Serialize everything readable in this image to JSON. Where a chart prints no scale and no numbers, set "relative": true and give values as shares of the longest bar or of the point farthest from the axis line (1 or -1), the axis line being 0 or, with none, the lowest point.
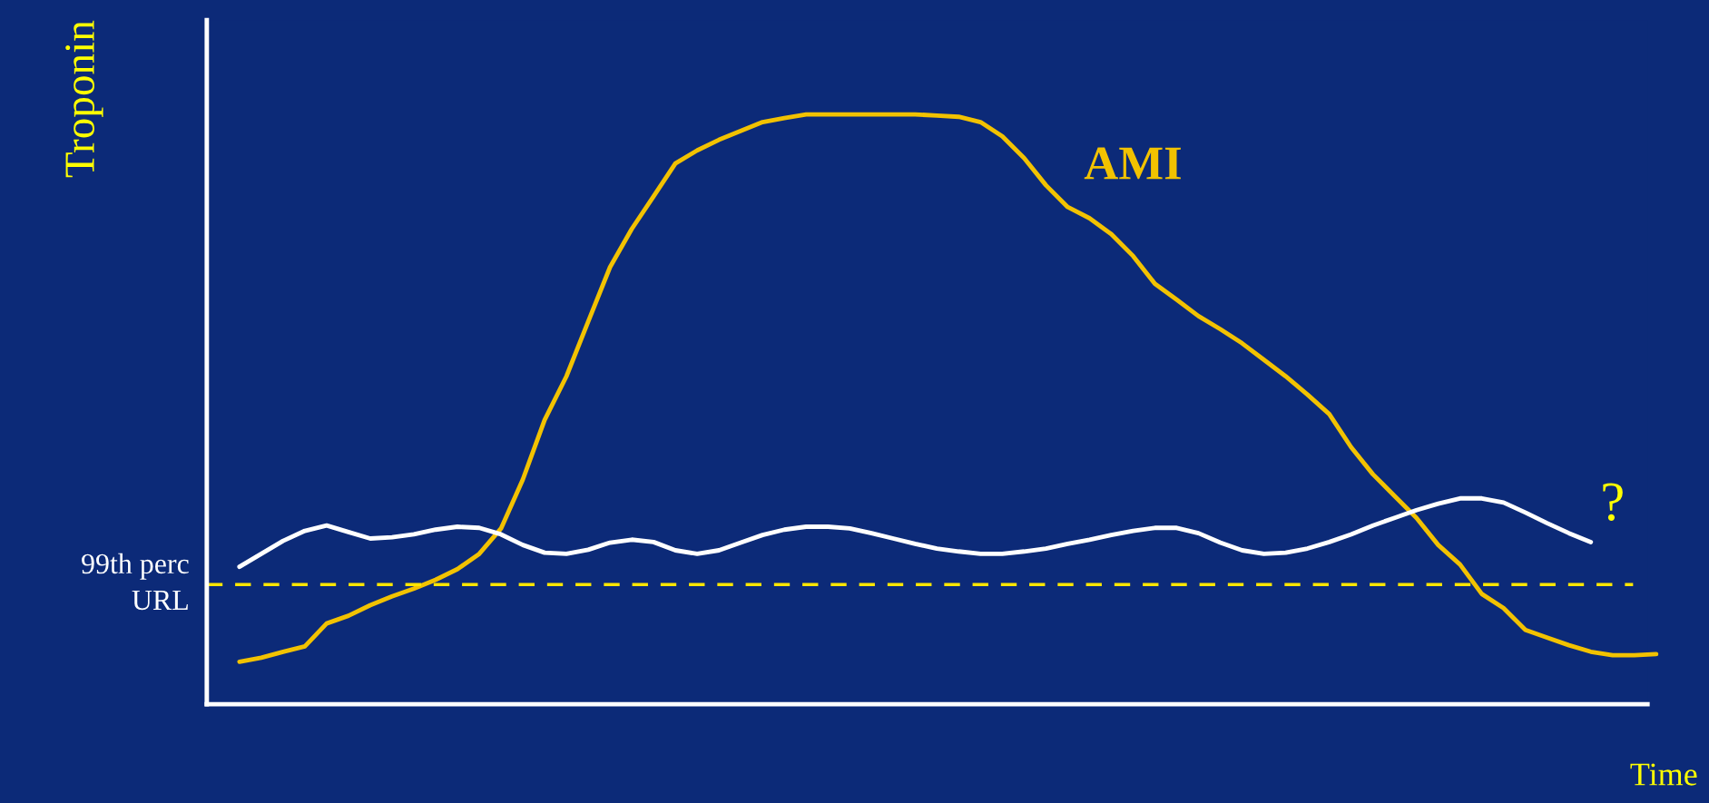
{
  "chart_data": {
    "type": "line",
    "relative": true,
    "ylabel": "Troponin",
    "xlabel": "Time",
    "marker": "none",
    "categories": [
      null,
      null,
      null,
      null,
      null,
      null,
      null,
      null,
      null,
      null,
      null,
      null,
      null,
      null,
      null,
      null,
      null,
      null,
      null,
      null,
      null,
      null,
      null,
      null,
      null,
      null,
      null,
      null,
      null,
      null,
      null,
      null,
      null,
      null,
      null,
      null,
      null,
      null,
      null,
      null,
      null,
      null,
      null,
      null,
      null,
      null,
      null,
      null,
      null,
      null,
      null,
      null,
      null,
      null,
      null,
      null,
      null,
      null,
      null,
      null,
      null,
      null,
      null,
      null,
      null,
      null
    ],
    "series": [
      {
        "name": "AMI",
        "color": "#f2c200",
        "line_style": "solid",
        "values": [
          0.072,
          0.079,
          0.089,
          0.098,
          0.137,
          0.15,
          0.168,
          0.183,
          0.196,
          0.211,
          0.229,
          0.255,
          0.298,
          0.381,
          0.482,
          0.556,
          0.649,
          0.741,
          0.806,
          0.861,
          0.917,
          0.939,
          0.957,
          0.972,
          0.987,
          0.994,
          1,
          1,
          1,
          1,
          1,
          1,
          0.998,
          0.996,
          0.987,
          0.963,
          0.926,
          0.88,
          0.843,
          0.824,
          0.797,
          0.76,
          0.713,
          0.686,
          0.658,
          0.636,
          0.612,
          0.584,
          0.556,
          0.525,
          0.492,
          0.436,
          0.39,
          0.353,
          0.316,
          0.27,
          0.237,
          0.187,
          0.163,
          0.126,
          0.113,
          0.1,
          0.089,
          0.083,
          0.083,
          0.085
        ]
      },
      {
        "color": "#ffffff",
        "line_style": "solid",
        "values": [
          0.233,
          0.255,
          0.277,
          0.294,
          0.303,
          0.292,
          0.281,
          0.283,
          0.288,
          0.296,
          0.301,
          0.299,
          0.288,
          0.27,
          0.257,
          0.255,
          0.262,
          0.274,
          0.279,
          0.275,
          0.261,
          0.255,
          0.261,
          0.274,
          0.287,
          0.296,
          0.301,
          0.301,
          0.298,
          0.29,
          0.281,
          0.272,
          0.264,
          0.259,
          0.255,
          0.255,
          0.259,
          0.264,
          0.272,
          0.279,
          0.287,
          0.294,
          0.299,
          0.299,
          0.29,
          0.274,
          0.261,
          0.255,
          0.257,
          0.264,
          0.275,
          0.288,
          0.303,
          0.316,
          0.329,
          0.34,
          0.349,
          0.349,
          0.342,
          0.325,
          0.307,
          0.29,
          0.275,
          null,
          null,
          null
        ]
      }
    ],
    "ref_lines": [
      {
        "axis": "y",
        "value": 0.203,
        "label": "99th perc\nURL",
        "color": "#ffe600",
        "line_style": "dashed"
      }
    ],
    "annotations": [
      "?"
    ]
  }
}
